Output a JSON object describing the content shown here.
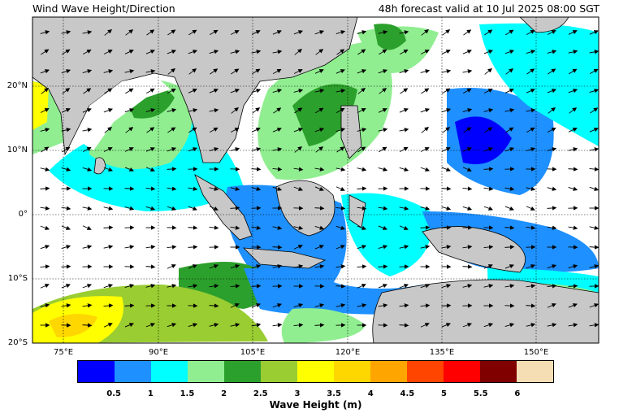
{
  "title_left": "Wind Wave Height/Direction",
  "title_right": "48h forecast valid at 10 Jul 2025 08:00 SGT",
  "lat_labels": [
    "20°N",
    "10°N",
    "0°",
    "10°S",
    "20°S"
  ],
  "lon_labels": [
    "75°E",
    "90°E",
    "105°E",
    "120°E",
    "135°E",
    "150°E"
  ],
  "colorbar": {
    "title": "Wave Height (m)",
    "ticks": [
      "0.5",
      "1",
      "1.5",
      "2",
      "2.5",
      "3",
      "3.5",
      "4",
      "4.5",
      "5",
      "5.5",
      "6"
    ],
    "colors": [
      "#0000ff",
      "#1e90ff",
      "#00ffff",
      "#90ee90",
      "#2ca02c",
      "#9acd32",
      "#ffff00",
      "#ffd700",
      "#ffa500",
      "#ff4500",
      "#ff0000",
      "#800000",
      "#f5deb3"
    ]
  },
  "land_color": "#c8c8c8",
  "ocean_background": "#ffffff"
}
